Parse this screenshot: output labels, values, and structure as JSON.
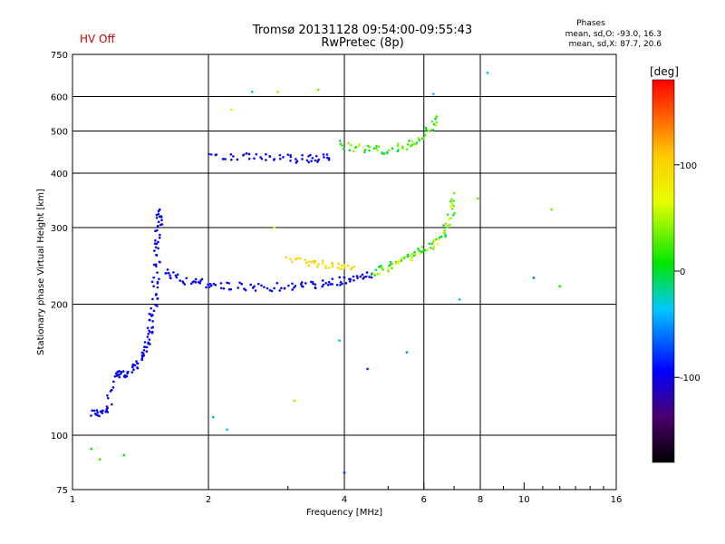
{
  "header": {
    "title_line1": "Tromsø 20131128 09:54:00-09:55:43",
    "title_line2": "RwPretec (8p)",
    "hv_status": "HV Off",
    "hv_color": "#cc0000",
    "phases_title": "Phases",
    "phases_o": "mean, sd,O: -93.0, 16.3",
    "phases_x": "mean, sd,X:  87.7, 20.6"
  },
  "chart_data": {
    "type": "scatter",
    "title": "Tromsø 20131128 09:54:00-09:55:43",
    "xlabel": "Frequency [MHz]",
    "ylabel": "Stationary phase Virtual Height [km]",
    "xscale": "log",
    "yscale": "log",
    "xlim": [
      1,
      16
    ],
    "ylim": [
      75,
      750
    ],
    "xticks": [
      1,
      2,
      4,
      6,
      8,
      10,
      16
    ],
    "xtick_labels": [
      "1",
      "2",
      "4",
      "6",
      "8",
      "10",
      "16"
    ],
    "xgrid": [
      2,
      4,
      6,
      8
    ],
    "x_minor_ticks": [
      3,
      5,
      7,
      9,
      11,
      12,
      13,
      14,
      15
    ],
    "yticks": [
      75,
      100,
      200,
      300,
      400,
      500,
      600,
      750
    ],
    "ytick_labels": [
      "75",
      "100",
      "200",
      "300",
      "400",
      "500",
      "600",
      "750"
    ],
    "ygrid": [
      100,
      200,
      300,
      400,
      500,
      600
    ],
    "colorbar": {
      "label": "[deg]",
      "range": [
        -180,
        180
      ],
      "ticks": [
        100,
        0,
        -100
      ],
      "tick_labels": [
        "100",
        "0",
        "-100"
      ]
    },
    "series": [
      {
        "name": "low-trace",
        "phase": -95,
        "spread": 10,
        "x": [
          1.1,
          1.15,
          1.2,
          1.24,
          1.28,
          1.32,
          1.38,
          1.42,
          1.45,
          1.48,
          1.5,
          1.52,
          1.53,
          1.54,
          1.55,
          1.56,
          1.56
        ],
        "y": [
          113,
          112,
          115,
          138,
          140,
          137,
          143,
          150,
          160,
          172,
          186,
          205,
          230,
          260,
          290,
          315,
          330
        ]
      },
      {
        "name": "F-trace",
        "phase": -95,
        "spread": 10,
        "x": [
          1.6,
          1.7,
          1.85,
          2.0,
          2.2,
          2.5,
          2.8,
          3.1,
          3.4,
          3.7,
          4.0,
          4.3,
          4.6
        ],
        "y": [
          240,
          230,
          225,
          222,
          220,
          219,
          219,
          220,
          221,
          223,
          226,
          230,
          235
        ]
      },
      {
        "name": "F-trace-upper",
        "phase": 30,
        "spread": 90,
        "x": [
          4.6,
          4.9,
          5.2,
          5.5,
          5.8,
          6.1,
          6.4,
          6.7,
          6.9,
          7.0
        ],
        "y": [
          235,
          240,
          248,
          255,
          262,
          270,
          280,
          295,
          320,
          360
        ]
      },
      {
        "name": "F-upper-yellow",
        "phase": 100,
        "spread": 15,
        "x": [
          3.0,
          3.3,
          3.6,
          3.9,
          4.2
        ],
        "y": [
          255,
          250,
          247,
          245,
          244
        ]
      },
      {
        "name": "echo-2F",
        "phase": -95,
        "spread": 20,
        "x": [
          2.0,
          2.3,
          2.6,
          2.9,
          3.2,
          3.5,
          3.7
        ],
        "y": [
          440,
          438,
          434,
          432,
          431,
          432,
          433
        ]
      },
      {
        "name": "echo-2F-high",
        "phase": 20,
        "spread": 70,
        "x": [
          3.9,
          4.2,
          4.6,
          5.0,
          5.4,
          5.8,
          6.2,
          6.4
        ],
        "y": [
          465,
          458,
          455,
          452,
          460,
          475,
          505,
          540
        ]
      },
      {
        "name": "scattered",
        "phase": 0,
        "spread": 160,
        "x": [
          1.1,
          1.15,
          1.3,
          2.05,
          2.2,
          2.25,
          2.5,
          2.8,
          2.85,
          3.1,
          3.5,
          3.9,
          4.0,
          4.5,
          5.5,
          6.3,
          7.2,
          7.9,
          8.3,
          10.5,
          11.5,
          12.0
        ],
        "y": [
          93,
          88,
          90,
          110,
          103,
          560,
          615,
          300,
          615,
          120,
          622,
          165,
          82,
          142,
          155,
          608,
          205,
          350,
          680,
          230,
          330,
          220
        ]
      }
    ]
  }
}
